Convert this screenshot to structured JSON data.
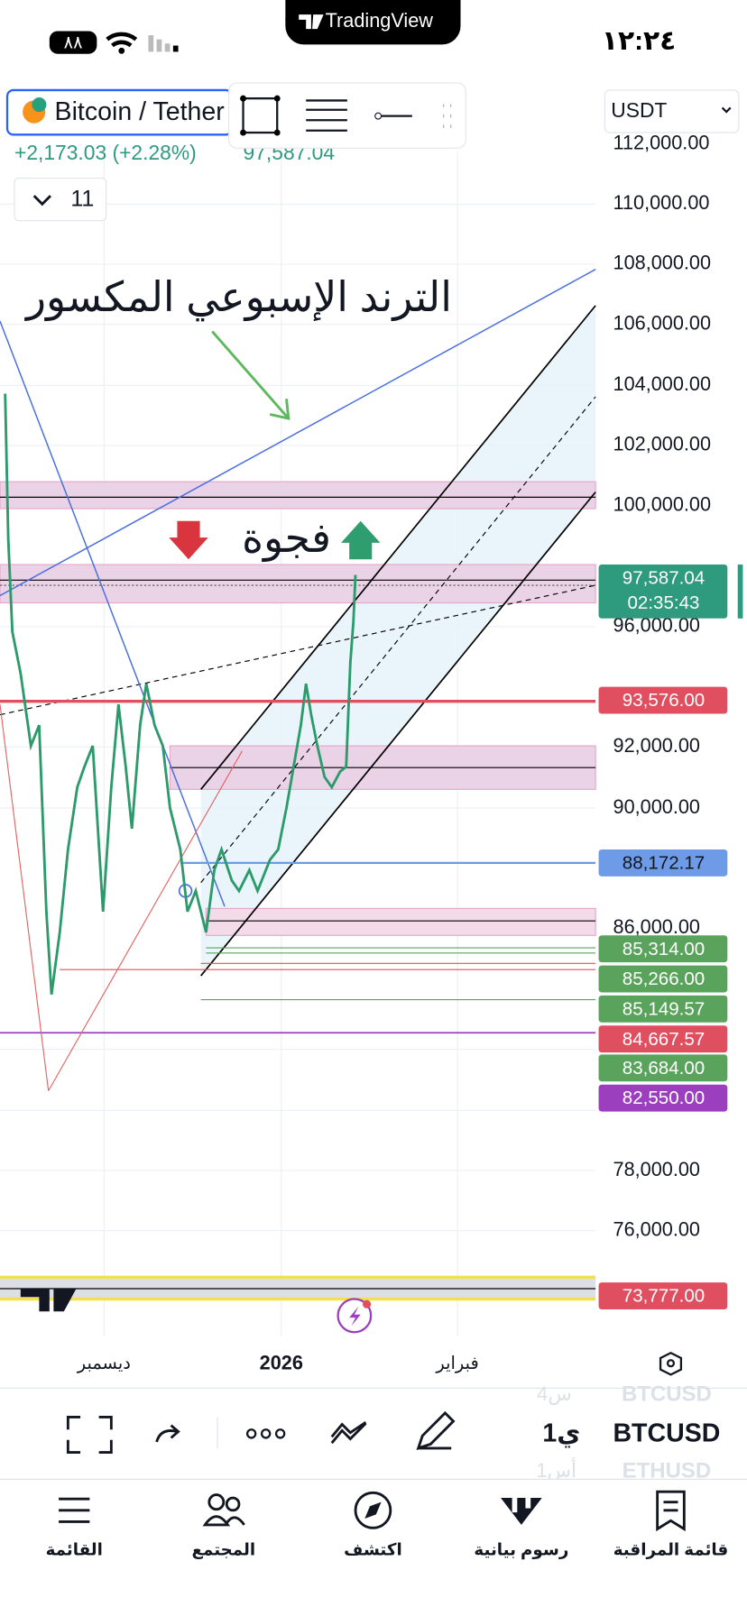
{
  "status": {
    "time": "١٢:٢٤",
    "battery": "٨٨",
    "brand": "TradingView"
  },
  "header": {
    "symbol": "Bitcoin / Tether",
    "change": "+2,173.03 (+2.28%)",
    "price": "97,587.04",
    "interval": "11",
    "currency": "USDT"
  },
  "price_axis": [
    "112,000.00",
    "110,000.00",
    "108,000.00",
    "106,000.00",
    "104,000.00",
    "102,000.00",
    "100,000.00",
    "96,000.00",
    "92,000.00",
    "90,000.00",
    "86,000.00",
    "78,000.00",
    "76,000.00"
  ],
  "annotations": {
    "trend": "الترند الإسبوعي المكسور",
    "gap": "فجوة"
  },
  "price_tags": [
    "97,587.04",
    "02:35:43",
    "93,576.00",
    "88,172.17",
    "85,314.00",
    "85,266.00",
    "85,149.57",
    "84,667.57",
    "83,684.00",
    "82,550.00",
    "73,777.00"
  ],
  "time_axis": [
    "ديسمبر",
    "2026",
    "فبراير"
  ],
  "toolbar": {
    "symbol": "BTCUSD",
    "interval": "1ي",
    "prev_symbol": "BTCUSD",
    "prev_interval": "4س",
    "next_symbol": "ETHUSD",
    "next_interval": "1أس"
  },
  "bottom_nav": [
    "القائمة",
    "المجتمع",
    "اكتشف",
    "رسوم بيانية",
    "قائمة المراقبة"
  ]
}
